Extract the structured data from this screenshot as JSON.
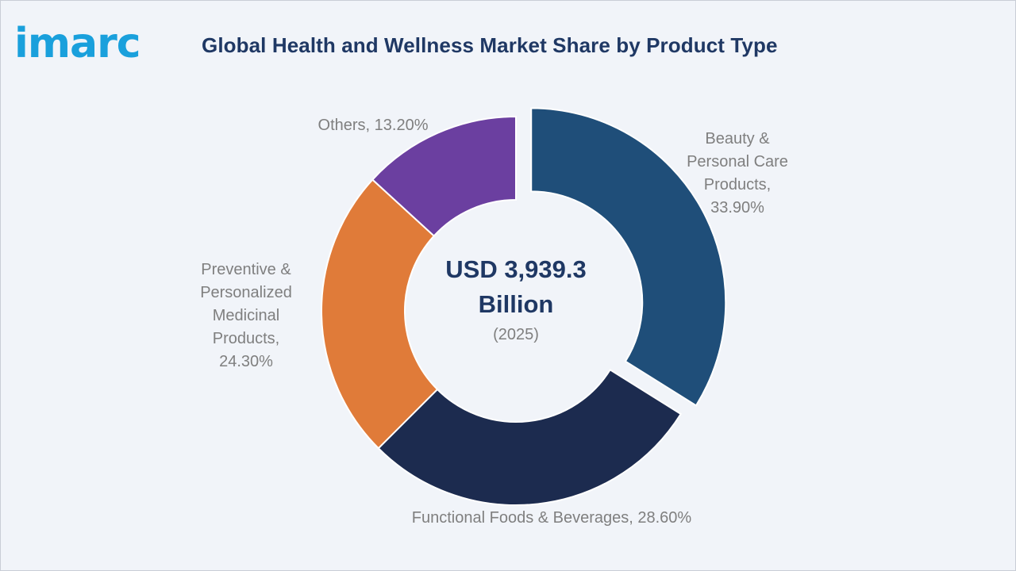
{
  "header": {
    "logo_text": "imarc",
    "title": "Global Health and Wellness Market Share by Product Type"
  },
  "center": {
    "total_line1": "USD 3,939.3",
    "total_line2": "Billion",
    "year": "(2025)"
  },
  "colors": {
    "logo": "#1aa0dc",
    "title": "#1f3864",
    "label": "#7f7f7f",
    "background": "#f1f4f9"
  },
  "chart_data": {
    "type": "pie",
    "variant": "donut",
    "title": "Global Health and Wellness Market Share by Product Type",
    "unit": "%",
    "slices": [
      {
        "name": "Beauty & Personal Care Products",
        "value": 33.9,
        "color": "#1f4e79",
        "label_lines": [
          "Beauty &",
          "Personal Care",
          "Products,",
          "33.90%"
        ],
        "exploded": true
      },
      {
        "name": "Functional Foods & Beverages",
        "value": 28.6,
        "color": "#1c2b4f",
        "label_lines": [
          "Functional Foods & Beverages, 28.60%"
        ],
        "exploded": false
      },
      {
        "name": "Preventive & Personalized Medicinal Products",
        "value": 24.3,
        "color": "#e07b39",
        "label_lines": [
          "Preventive &",
          "Personalized",
          "Medicinal",
          "Products,",
          "24.30%"
        ],
        "exploded": false
      },
      {
        "name": "Others",
        "value": 13.2,
        "color": "#6b3fa0",
        "label_lines": [
          "Others, 13.20%"
        ],
        "exploded": false
      }
    ]
  }
}
